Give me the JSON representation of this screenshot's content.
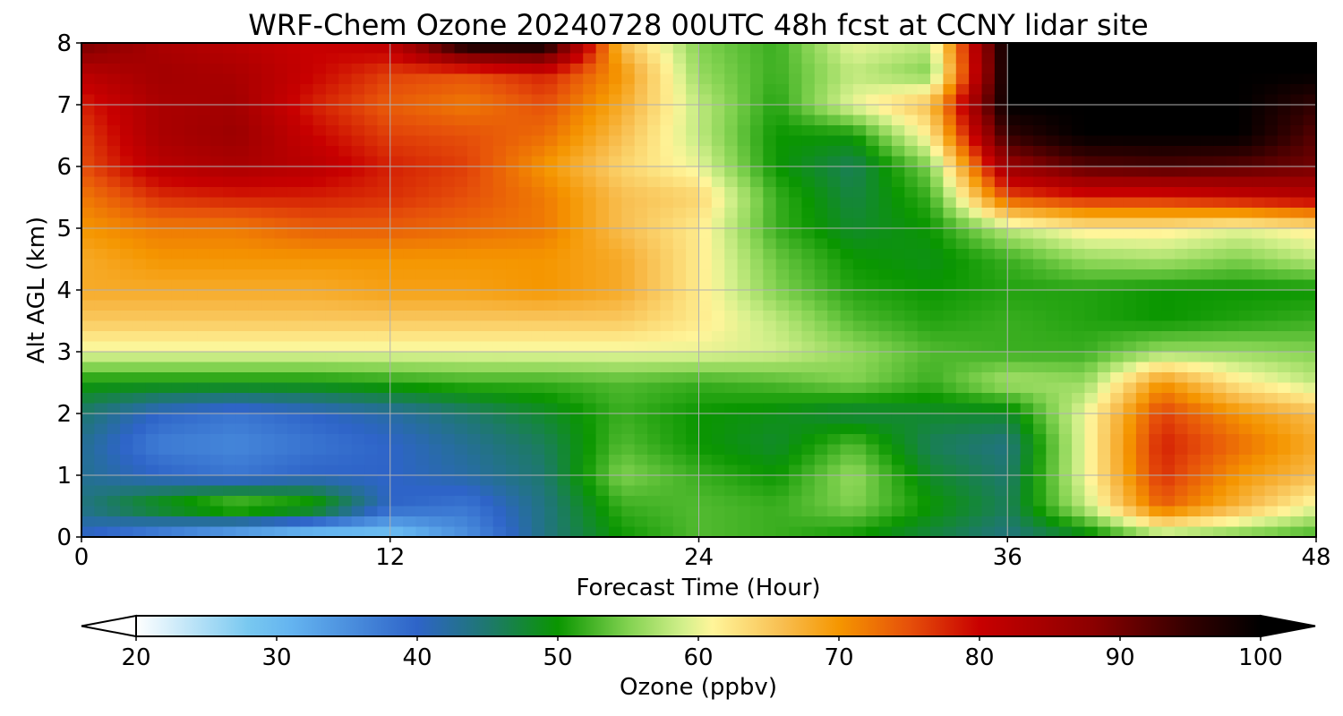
{
  "chart_data": {
    "type": "heatmap",
    "title": "WRF-Chem Ozone  20240728 00UTC 48h fcst at CCNY lidar site",
    "xlabel": "Forecast Time (Hour)",
    "ylabel": "Alt AGL (km)",
    "xlim": [
      0,
      48
    ],
    "ylim": [
      0,
      8
    ],
    "xticks": [
      "0",
      "12",
      "24",
      "36",
      "48"
    ],
    "xtick_values": [
      0,
      12,
      24,
      36,
      48
    ],
    "yticks": [
      "0",
      "1",
      "2",
      "3",
      "4",
      "5",
      "6",
      "7",
      "8"
    ],
    "ytick_values": [
      0,
      1,
      2,
      3,
      4,
      5,
      6,
      7,
      8
    ],
    "grid": true,
    "x": [
      0,
      3,
      6,
      9,
      12,
      15,
      18,
      21,
      24,
      27,
      30,
      33,
      36,
      39,
      42,
      45,
      48
    ],
    "y": [
      0,
      0.5,
      1,
      1.5,
      2,
      2.5,
      3,
      3.5,
      4,
      4.5,
      5,
      5.5,
      6,
      6.5,
      7,
      7.5,
      8
    ],
    "z": [
      [
        40,
        35,
        30,
        27,
        28,
        35,
        44,
        50,
        53,
        52,
        50,
        47,
        44,
        48,
        56,
        54,
        52
      ],
      [
        44,
        50,
        55,
        52,
        40,
        38,
        44,
        52,
        53,
        52,
        55,
        50,
        46,
        58,
        74,
        67,
        60
      ],
      [
        43,
        40,
        38,
        40,
        40,
        42,
        45,
        55,
        52,
        50,
        56,
        48,
        45,
        60,
        77,
        70,
        66
      ],
      [
        43,
        37,
        36,
        38,
        40,
        43,
        46,
        53,
        50,
        48,
        53,
        46,
        44,
        60,
        78,
        73,
        68
      ],
      [
        45,
        40,
        38,
        40,
        42,
        45,
        48,
        52,
        50,
        49,
        47,
        48,
        48,
        60,
        76,
        70,
        66
      ],
      [
        50,
        50,
        50,
        50,
        51,
        52,
        52,
        53,
        52,
        53,
        55,
        52,
        57,
        56,
        70,
        62,
        58
      ],
      [
        60,
        60,
        60,
        60,
        60,
        60,
        60,
        60,
        60,
        59,
        56,
        53,
        52,
        52,
        56,
        56,
        55
      ],
      [
        65,
        65,
        65,
        65,
        65,
        65,
        65,
        65,
        62,
        58,
        53,
        51,
        52,
        51,
        50,
        51,
        52
      ],
      [
        68,
        68,
        68,
        68,
        69,
        69,
        70,
        68,
        62,
        55,
        51,
        50,
        51,
        51,
        50,
        50,
        50
      ],
      [
        68,
        70,
        70,
        70,
        70,
        70,
        70,
        68,
        62,
        54,
        50,
        49,
        52,
        56,
        57,
        55,
        58
      ],
      [
        70,
        72,
        72,
        74,
        74,
        73,
        72,
        66,
        62,
        52,
        48,
        50,
        58,
        62,
        62,
        60,
        62
      ],
      [
        72,
        77,
        78,
        78,
        77,
        75,
        72,
        66,
        64,
        52,
        47,
        52,
        75,
        78,
        78,
        80,
        82
      ],
      [
        75,
        82,
        84,
        82,
        78,
        76,
        70,
        64,
        60,
        50,
        46,
        55,
        86,
        92,
        93,
        92,
        90
      ],
      [
        76,
        84,
        86,
        80,
        76,
        75,
        73,
        66,
        58,
        50,
        50,
        62,
        95,
        100,
        100,
        100,
        92
      ],
      [
        78,
        84,
        85,
        78,
        74,
        72,
        75,
        68,
        58,
        51,
        60,
        66,
        100,
        100,
        100,
        100,
        95
      ],
      [
        82,
        85,
        84,
        80,
        76,
        75,
        78,
        70,
        56,
        52,
        58,
        55,
        100,
        100,
        100,
        100,
        100
      ],
      [
        90,
        84,
        82,
        80,
        82,
        100,
        100,
        66,
        55,
        52,
        60,
        58,
        100,
        100,
        100,
        100,
        100
      ]
    ],
    "colorbar": {
      "label": "Ozone  (ppbv)",
      "min": 20,
      "max": 100,
      "extend": "both",
      "ticks": [
        "20",
        "30",
        "40",
        "50",
        "60",
        "70",
        "80",
        "90",
        "100"
      ],
      "tick_values": [
        20,
        30,
        40,
        50,
        60,
        70,
        80,
        90,
        100
      ],
      "stops": [
        {
          "value": 20,
          "color": "#ffffff"
        },
        {
          "value": 28,
          "color": "#78c8f0"
        },
        {
          "value": 31,
          "color": "#64b4f0"
        },
        {
          "value": 40,
          "color": "#2e64c8"
        },
        {
          "value": 45,
          "color": "#1e786e"
        },
        {
          "value": 50,
          "color": "#0a9600"
        },
        {
          "value": 55,
          "color": "#82d250"
        },
        {
          "value": 59,
          "color": "#d4f08c"
        },
        {
          "value": 61,
          "color": "#fff59a"
        },
        {
          "value": 66,
          "color": "#f8be50"
        },
        {
          "value": 70,
          "color": "#f59600"
        },
        {
          "value": 75,
          "color": "#e6500a"
        },
        {
          "value": 80,
          "color": "#c80000"
        },
        {
          "value": 88,
          "color": "#8c0000"
        },
        {
          "value": 95,
          "color": "#320000"
        },
        {
          "value": 100,
          "color": "#000000"
        }
      ]
    }
  }
}
